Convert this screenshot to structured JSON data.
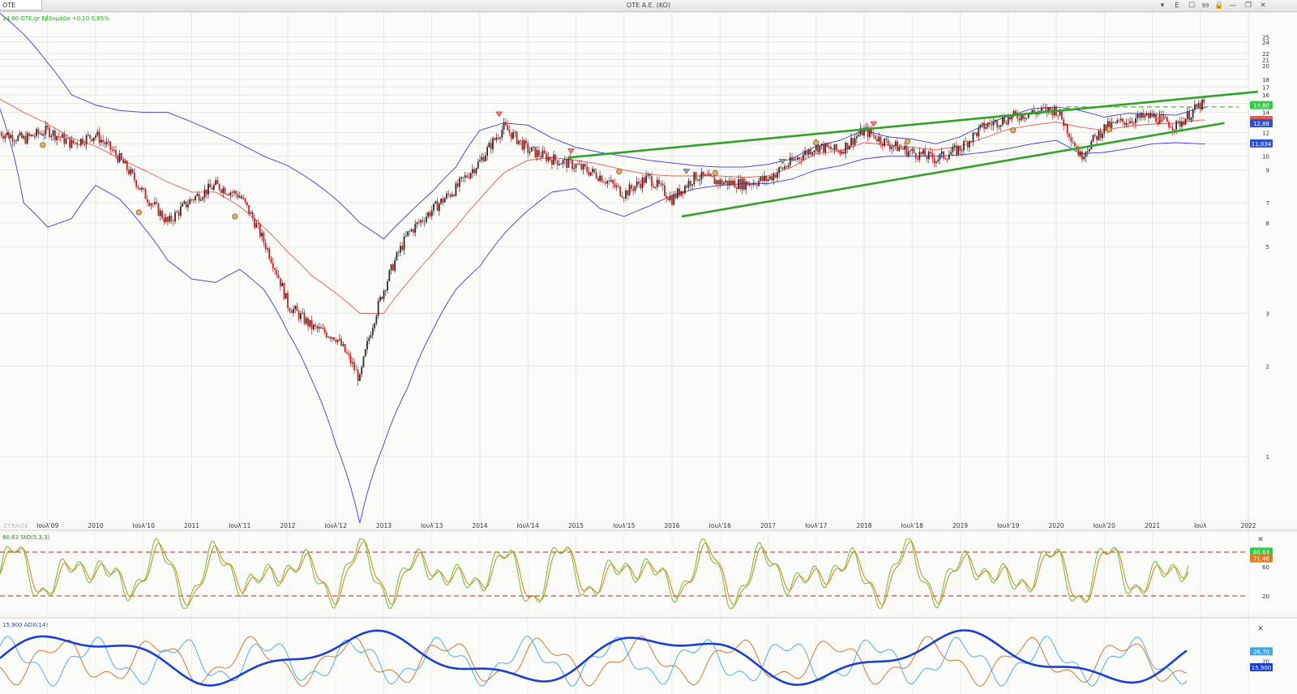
{
  "window": {
    "symbol": "OTE",
    "title": "OTE A.E. (KO)",
    "controls": [
      "▾",
      "E",
      "☐",
      "99",
      "🔒",
      "—",
      "❐",
      "✕"
    ]
  },
  "quote_line": "14,80 OTE.gr Εβδομάδα +0,10 0,65%",
  "watermark": "ZTRADE",
  "panels": {
    "stoch_label": "80,63 StO(5,3,3)",
    "adx_label": "15,900 ADX(14)",
    "close_symbol": "✕"
  },
  "colors": {
    "price_up": "#2b2b2b",
    "price_down": "#d21a1a",
    "bollinger": "#3b3bd8",
    "sma": "#e8584f",
    "channel": "#33a12a",
    "stoch_k": "#6bbf2a",
    "stoch_d": "#e07a1a",
    "stoch_fill": "#9fd98a",
    "adx": "#1b3fd1",
    "plus_di": "#39a9e0",
    "minus_di": "#d2691e",
    "last_price_tag": "#2ecc40",
    "band_tag": "#2e4fd0",
    "sma_tag": "#e8584f"
  },
  "chart_data": [
    {
      "type": "line",
      "name": "price",
      "scale": "log",
      "ylim": [
        1,
        25
      ],
      "y_ticks": [
        25,
        24,
        22,
        21,
        20,
        18,
        17,
        16,
        15,
        14,
        12,
        11,
        10,
        9,
        7,
        6,
        5,
        3,
        2,
        1
      ],
      "x_ticks": [
        "Ιουλ'09",
        "2010",
        "Ιουλ'10",
        "2011",
        "Ιουλ'11",
        "2012",
        "Ιουλ'12",
        "2013",
        "Ιουλ'13",
        "2014",
        "Ιουλ'14",
        "2015",
        "Ιουλ'15",
        "2016",
        "Ιουλ'16",
        "2017",
        "Ιουλ'17",
        "2018",
        "Ιουλ'18",
        "2019",
        "Ιουλ'19",
        "2020",
        "Ιουλ'20",
        "2021",
        "Ιουλ",
        "2022"
      ],
      "x": [
        2009.0,
        2009.25,
        2009.5,
        2009.75,
        2010.0,
        2010.25,
        2010.5,
        2010.75,
        2011.0,
        2011.25,
        2011.5,
        2011.75,
        2012.0,
        2012.25,
        2012.5,
        2012.75,
        2013.0,
        2013.25,
        2013.5,
        2013.75,
        2014.0,
        2014.25,
        2014.5,
        2014.75,
        2015.0,
        2015.25,
        2015.5,
        2015.75,
        2016.0,
        2016.25,
        2016.5,
        2016.75,
        2017.0,
        2017.25,
        2017.5,
        2017.75,
        2018.0,
        2018.25,
        2018.5,
        2018.75,
        2019.0,
        2019.25,
        2019.5,
        2019.75,
        2020.0,
        2020.25,
        2020.5,
        2020.75,
        2021.0,
        2021.25,
        2021.5
      ],
      "close": [
        12.0,
        11.4,
        12.2,
        11.0,
        11.8,
        9.8,
        7.5,
        6.0,
        7.2,
        8.0,
        7.4,
        5.2,
        3.2,
        2.7,
        2.5,
        1.8,
        3.6,
        5.5,
        6.6,
        7.8,
        9.6,
        12.5,
        10.5,
        9.8,
        9.3,
        8.6,
        7.5,
        8.5,
        7.2,
        8.6,
        8.2,
        8.1,
        8.4,
        9.6,
        10.8,
        10.4,
        12.2,
        11.0,
        10.3,
        9.8,
        10.6,
        12.6,
        13.4,
        14.0,
        14.3,
        10.0,
        12.4,
        13.2,
        13.6,
        12.6,
        14.8
      ],
      "series": [
        {
          "name": "Bollinger upper",
          "values": [
            30,
            25.5,
            20.5,
            16,
            14.8,
            14.2,
            14,
            14,
            13,
            12,
            11,
            10,
            9.3,
            8.3,
            7.2,
            6,
            5.3,
            6.4,
            7.6,
            9.2,
            12.2,
            12.9,
            12.7,
            11.5,
            10.7,
            10.3,
            10,
            9.7,
            9.5,
            9.3,
            9.2,
            9.2,
            9.4,
            9.8,
            10.8,
            11.3,
            12.2,
            11.6,
            11.4,
            11.0,
            11.6,
            12.7,
            13.6,
            14.4,
            14.6,
            14.2,
            13.5,
            13.9,
            13.8,
            13.7,
            14.5
          ]
        },
        {
          "name": "SMA",
          "values": [
            15.5,
            14,
            12.8,
            11.5,
            10.8,
            9.8,
            9.0,
            8.2,
            7.6,
            7.6,
            6.8,
            5.8,
            4.8,
            4.0,
            3.5,
            3.0,
            3.0,
            3.8,
            4.7,
            5.8,
            7.2,
            8.8,
            9.7,
            9.9,
            9.7,
            9.4,
            9.0,
            8.7,
            8.6,
            8.6,
            8.6,
            8.5,
            8.6,
            9.2,
            10.2,
            10.4,
            11.1,
            10.9,
            10.7,
            10.5,
            10.8,
            11.5,
            12.3,
            12.7,
            13.0,
            12.5,
            12.2,
            12.6,
            12.8,
            12.9,
            13.2
          ]
        },
        {
          "name": "Bollinger lower",
          "values": [
            14.5,
            7.0,
            5.8,
            6.2,
            8.0,
            7.2,
            5.8,
            4.5,
            3.9,
            3.8,
            4.2,
            3.6,
            2.6,
            1.8,
            1.1,
            0.6,
            1.1,
            1.7,
            2.6,
            3.6,
            4.3,
            5.5,
            6.6,
            7.6,
            7.8,
            6.7,
            6.3,
            6.8,
            7.4,
            7.8,
            8.0,
            8.1,
            8.1,
            8.4,
            9.0,
            9.3,
            9.8,
            10.0,
            10.0,
            10.0,
            10.1,
            10.3,
            10.6,
            11.0,
            11.3,
            10.2,
            10.3,
            10.6,
            11.0,
            11.1,
            11.0
          ]
        }
      ],
      "channel_lines": [
        {
          "name": "channel upper",
          "from": [
            2014.92,
            9.9
          ],
          "to": [
            2022.1,
            16.4
          ]
        },
        {
          "name": "channel lower",
          "from": [
            2016.1,
            6.3
          ],
          "to": [
            2021.75,
            12.9
          ]
        },
        {
          "name": "resistance",
          "from": [
            2020.1,
            14.6
          ],
          "to": [
            2021.9,
            14.6
          ]
        }
      ],
      "last_price": 14.8,
      "tags": [
        "14,80",
        "12,88",
        "11,034"
      ]
    },
    {
      "type": "line",
      "name": "StO(5,3,3)",
      "ylim": [
        0,
        100
      ],
      "y_ticks": [
        80,
        60,
        20
      ],
      "levels": [
        80,
        20
      ],
      "last_k": 80.63,
      "last_d": 71.46,
      "tags": [
        "80,63",
        "71,46"
      ]
    },
    {
      "type": "line",
      "name": "ADX(14)",
      "y_ticks": [
        20
      ],
      "last_adx": 15.9,
      "last_plus_di": 26.7,
      "tags": [
        "26,70",
        "15,900"
      ]
    }
  ]
}
